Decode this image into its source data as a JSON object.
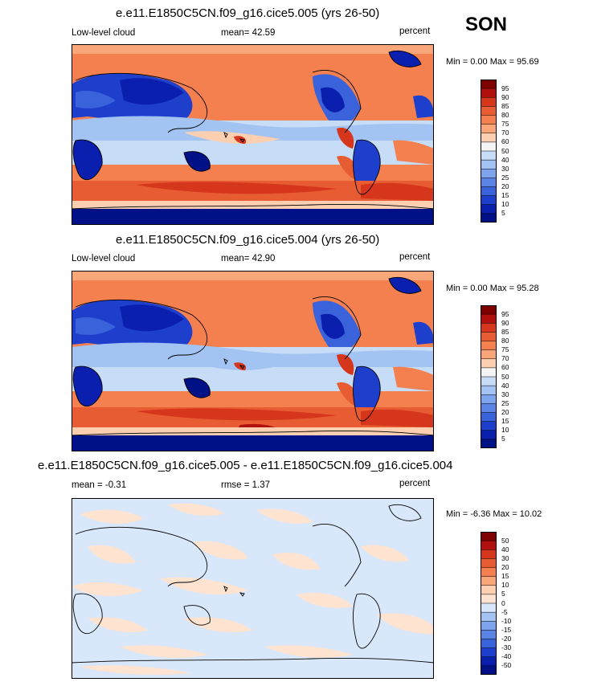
{
  "season": "SON",
  "panels": [
    {
      "title": "e.e11.E1850C5CN.f09_g16.cice5.005 (yrs 26-50)",
      "left_label": "Low-level cloud",
      "center_label": "mean=  42.59",
      "right_label": "percent",
      "minmax": "Min =   0.00 Max =  95.69"
    },
    {
      "title": "e.e11.E1850C5CN.f09_g16.cice5.004 (yrs 26-50)",
      "left_label": "Low-level cloud",
      "center_label": "mean=  42.90",
      "right_label": "percent",
      "minmax": "Min =   0.00 Max =  95.28"
    },
    {
      "title": "e.e11.E1850C5CN.f09_g16.cice5.005 - e.e11.E1850C5CN.f09_g16.cice5.004",
      "left_label": "mean =  -0.31",
      "center_label": "rmse =  1.37",
      "right_label": "percent",
      "minmax": "Min =  -6.36 Max =  10.02"
    }
  ],
  "colorbars": {
    "absolute": {
      "levels": [
        "95",
        "90",
        "85",
        "80",
        "75",
        "70",
        "60",
        "50",
        "40",
        "30",
        "25",
        "20",
        "15",
        "10",
        "5"
      ],
      "colors": [
        "#7f0000",
        "#b2100e",
        "#d6361c",
        "#e85c33",
        "#f4804f",
        "#f9a67b",
        "#fbcfb0",
        "#f4f4f4",
        "#c7dcf7",
        "#a3c3f3",
        "#7ea4ee",
        "#5c84e6",
        "#3a62db",
        "#1d3fcc",
        "#0a1fae",
        "#001086"
      ]
    },
    "difference": {
      "levels": [
        "50",
        "40",
        "30",
        "20",
        "15",
        "10",
        "5",
        "0",
        "-5",
        "-10",
        "-15",
        "-20",
        "-30",
        "-40",
        "-50"
      ],
      "colors": [
        "#7f0000",
        "#b2100e",
        "#d6361c",
        "#e85c33",
        "#f4804f",
        "#f9a67b",
        "#fbcfb0",
        "#fde3d0",
        "#d8e7fa",
        "#a3c3f3",
        "#7ea4ee",
        "#5c84e6",
        "#3a62db",
        "#1d3fcc",
        "#0a1fae",
        "#001086"
      ]
    }
  }
}
